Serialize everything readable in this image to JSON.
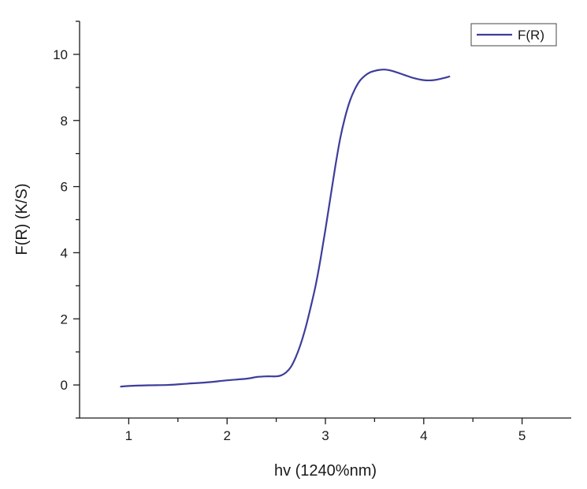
{
  "chart_data": {
    "type": "line",
    "title": "",
    "xlabel": "hv (1240%nm)",
    "ylabel": "F(R) (K/S)",
    "xlim": [
      0.5,
      5.5
    ],
    "ylim": [
      -1,
      11
    ],
    "x_major_ticks": [
      1,
      2,
      3,
      4,
      5
    ],
    "x_tick_labels": [
      "1",
      "2",
      "3",
      "4",
      "5"
    ],
    "x_minor_ticks": [
      1.5,
      2.5,
      3.5,
      4.5
    ],
    "y_major_ticks": [
      0,
      2,
      4,
      6,
      8,
      10
    ],
    "y_tick_labels": [
      "0",
      "2",
      "4",
      "6",
      "8",
      "10"
    ],
    "y_minor_ticks": [
      -1,
      1,
      3,
      5,
      7,
      9,
      11
    ],
    "grid": false,
    "legend": {
      "position": "top-right",
      "entries": [
        "F(R)"
      ]
    },
    "series": [
      {
        "name": "F(R)",
        "color": "#3d3d9b",
        "x": [
          0.92,
          1.0,
          1.2,
          1.4,
          1.6,
          1.8,
          2.0,
          2.2,
          2.3,
          2.4,
          2.5,
          2.55,
          2.6,
          2.65,
          2.7,
          2.75,
          2.8,
          2.85,
          2.9,
          2.95,
          3.0,
          3.05,
          3.1,
          3.15,
          3.2,
          3.25,
          3.3,
          3.35,
          3.4,
          3.45,
          3.5,
          3.55,
          3.6,
          3.65,
          3.7,
          3.8,
          3.9,
          4.0,
          4.1,
          4.2,
          4.26
        ],
        "y": [
          -0.05,
          -0.03,
          -0.01,
          0.0,
          0.04,
          0.08,
          0.14,
          0.19,
          0.24,
          0.26,
          0.26,
          0.29,
          0.38,
          0.55,
          0.85,
          1.25,
          1.75,
          2.35,
          3.0,
          3.8,
          4.7,
          5.65,
          6.6,
          7.45,
          8.1,
          8.6,
          8.95,
          9.2,
          9.35,
          9.45,
          9.5,
          9.53,
          9.54,
          9.52,
          9.48,
          9.38,
          9.28,
          9.22,
          9.22,
          9.28,
          9.33
        ]
      }
    ]
  }
}
